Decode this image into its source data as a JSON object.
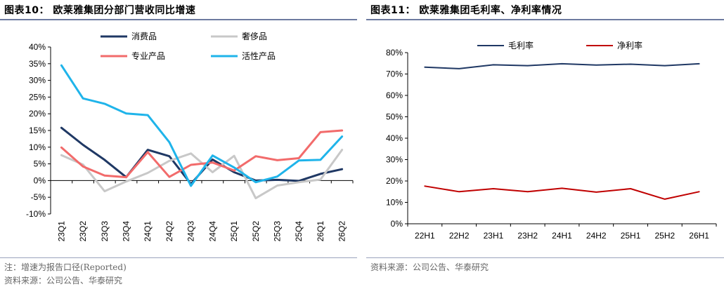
{
  "left": {
    "title": "图表10：  欧莱雅集团分部门营收同比增速",
    "note": "注：增速为报告口径(Reported)",
    "source": "资料来源：公司公告、华泰研究"
  },
  "right": {
    "title": "图表11：  欧莱雅集团毛利率、净利率情况",
    "source": "资料来源：公司公告、华泰研究"
  },
  "chart_data": [
    {
      "type": "line",
      "categories": [
        "23Q1",
        "23Q2",
        "23Q3",
        "23Q4",
        "24Q1",
        "24Q2",
        "24Q3",
        "24Q4",
        "25Q1",
        "25Q2",
        "25Q3",
        "25Q4",
        "26Q1",
        "26Q2"
      ],
      "y_ticks": [
        "40%",
        "35%",
        "30%",
        "25%",
        "20%",
        "15%",
        "10%",
        "5%",
        "0%",
        "-5%",
        "-10%"
      ],
      "ylim": [
        -10,
        40
      ],
      "legend_placement": "top",
      "series": [
        {
          "name": "消费品",
          "color": "#1f3864",
          "values": [
            15.8,
            10.7,
            6.2,
            1.0,
            9.2,
            7.3,
            -1.0,
            6.3,
            2.5,
            0.0,
            0.2,
            -0.1,
            2.0,
            3.4
          ]
        },
        {
          "name": "奢侈品",
          "color": "#c8c8c8",
          "values": [
            7.6,
            4.8,
            -3.2,
            -0.3,
            2.3,
            5.9,
            8.1,
            2.5,
            7.4,
            -5.3,
            -1.5,
            -0.5,
            0.3,
            9.2
          ]
        },
        {
          "name": "专业产品",
          "color": "#f26b6b",
          "values": [
            9.9,
            4.2,
            1.5,
            1.0,
            8.5,
            1.1,
            4.7,
            5.4,
            3.0,
            7.3,
            6.1,
            6.7,
            14.5,
            15.0
          ]
        },
        {
          "name": "活性产品",
          "color": "#1fb4ea",
          "values": [
            34.5,
            24.6,
            23.0,
            20.1,
            19.6,
            11.5,
            -1.6,
            7.5,
            3.9,
            -0.5,
            1.2,
            6.0,
            6.2,
            13.2
          ]
        }
      ]
    },
    {
      "type": "line",
      "categories": [
        "22H1",
        "22H2",
        "23H1",
        "23H2",
        "24H1",
        "24H2",
        "25H1",
        "25H2",
        "26H1"
      ],
      "y_ticks": [
        "80%",
        "70%",
        "60%",
        "50%",
        "40%",
        "30%",
        "20%",
        "10%",
        "0%"
      ],
      "ylim": [
        0,
        80
      ],
      "legend_placement": "top",
      "series": [
        {
          "name": "毛利率",
          "color": "#1f3864",
          "values": [
            73.2,
            72.5,
            74.3,
            73.9,
            74.8,
            74.2,
            74.6,
            73.9,
            74.8
          ]
        },
        {
          "name": "净利率",
          "color": "#c00000",
          "values": [
            17.6,
            15.0,
            16.4,
            15.0,
            16.6,
            14.8,
            16.4,
            11.5,
            15.0
          ]
        }
      ]
    }
  ]
}
